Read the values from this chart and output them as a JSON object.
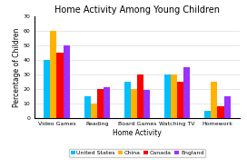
{
  "title": "Home Activity Among Young Children",
  "xlabel": "Home Activity",
  "ylabel": "Percentage of Children",
  "categories": [
    "Video Games",
    "Reading",
    "Board Games",
    "Watching TV",
    "Homework"
  ],
  "series": {
    "United States": [
      40,
      15,
      25,
      30,
      5
    ],
    "China": [
      60,
      10,
      20,
      30,
      25
    ],
    "Canada": [
      45,
      20,
      30,
      25,
      8
    ],
    "England": [
      50,
      21,
      19,
      35,
      15
    ]
  },
  "colors": {
    "United States": "#00BFFF",
    "China": "#FFB300",
    "Canada": "#FF0000",
    "England": "#9B30FF"
  },
  "ylim": [
    0,
    70
  ],
  "yticks": [
    0,
    10,
    20,
    30,
    40,
    50,
    60,
    70
  ],
  "background_color": "#ffffff",
  "title_fontsize": 7,
  "axis_label_fontsize": 5.5,
  "tick_fontsize": 4.5,
  "legend_fontsize": 4.5
}
